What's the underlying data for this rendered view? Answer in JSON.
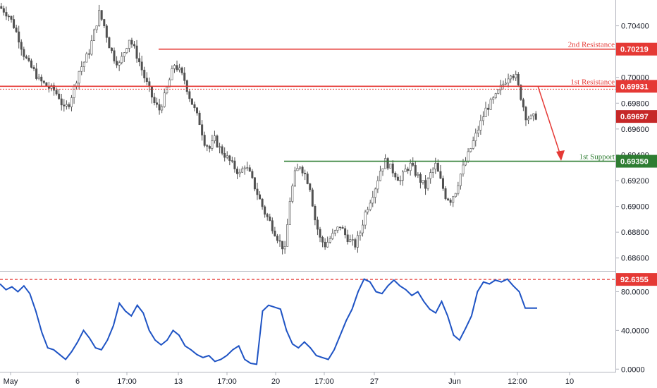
{
  "chart_data": {
    "type": "candlestick",
    "title": "",
    "price_axis": {
      "range": [
        0.685,
        0.706
      ],
      "ticks": [
        "0.70400",
        "0.70000",
        "0.69800",
        "0.69600",
        "0.69400",
        "0.69200",
        "0.69000",
        "0.68800",
        "0.68600"
      ]
    },
    "time_axis": {
      "ticks": [
        "May",
        "6",
        "17:00",
        "13",
        "17:00",
        "20",
        "17:00",
        "27",
        "Jun",
        "12:00",
        "10"
      ]
    },
    "levels": [
      {
        "name": "2nd Resistance",
        "value": "0.70219",
        "color": "#e53935"
      },
      {
        "name": "1st Resistance",
        "value": "0.69931",
        "color": "#e53935"
      },
      {
        "name": "1st Support",
        "value": "0.69350",
        "color": "#2e7d32"
      }
    ],
    "current_price": {
      "value": "0.69697",
      "color": "#c62828"
    },
    "price_path": [
      0.7055,
      0.7052,
      0.7048,
      0.704,
      0.703,
      0.7018,
      0.701,
      0.7005,
      0.6998,
      0.6995,
      0.6992,
      0.699,
      0.6985,
      0.6975,
      0.698,
      0.6992,
      0.7005,
      0.7012,
      0.702,
      0.7035,
      0.705,
      0.704,
      0.7025,
      0.7015,
      0.701,
      0.702,
      0.703,
      0.7022,
      0.7012,
      0.7,
      0.699,
      0.698,
      0.6975,
      0.6985,
      0.6998,
      0.701,
      0.7005,
      0.6998,
      0.6985,
      0.6975,
      0.6965,
      0.695,
      0.6945,
      0.6952,
      0.6945,
      0.694,
      0.6935,
      0.693,
      0.6925,
      0.6932,
      0.6925,
      0.6915,
      0.6905,
      0.6895,
      0.6888,
      0.688,
      0.6872,
      0.6866,
      0.6905,
      0.6925,
      0.6932,
      0.6925,
      0.6915,
      0.689,
      0.6875,
      0.687,
      0.6875,
      0.688,
      0.6885,
      0.6878,
      0.6873,
      0.687,
      0.688,
      0.6895,
      0.6905,
      0.6915,
      0.6928,
      0.6935,
      0.693,
      0.6925,
      0.692,
      0.6928,
      0.6932,
      0.6926,
      0.692,
      0.6915,
      0.6925,
      0.6932,
      0.692,
      0.6908,
      0.6905,
      0.6912,
      0.6925,
      0.6935,
      0.6945,
      0.6955,
      0.6965,
      0.6975,
      0.698,
      0.6985,
      0.6992,
      0.6998,
      0.7004,
      0.7,
      0.6985,
      0.697,
      0.6968,
      0.697
    ],
    "indicator": {
      "name": "",
      "range": [
        -2,
        100
      ],
      "ticks": [
        "80.0000",
        "40.0000",
        "0.0000"
      ],
      "level": {
        "value": "92.6355",
        "color": "#e53935"
      },
      "values": [
        88,
        82,
        85,
        80,
        86,
        78,
        60,
        38,
        22,
        20,
        15,
        10,
        18,
        28,
        40,
        32,
        22,
        20,
        30,
        45,
        68,
        60,
        55,
        66,
        58,
        40,
        30,
        25,
        30,
        40,
        35,
        24,
        20,
        15,
        12,
        14,
        8,
        10,
        14,
        20,
        24,
        10,
        6,
        5,
        60,
        66,
        64,
        62,
        40,
        26,
        22,
        28,
        22,
        14,
        12,
        10,
        20,
        35,
        50,
        62,
        80,
        93,
        90,
        80,
        78,
        86,
        92,
        86,
        82,
        76,
        80,
        70,
        62,
        58,
        70,
        55,
        35,
        30,
        42,
        55,
        80,
        90,
        88,
        92,
        90,
        93,
        86,
        80,
        63,
        63,
        63
      ]
    }
  }
}
